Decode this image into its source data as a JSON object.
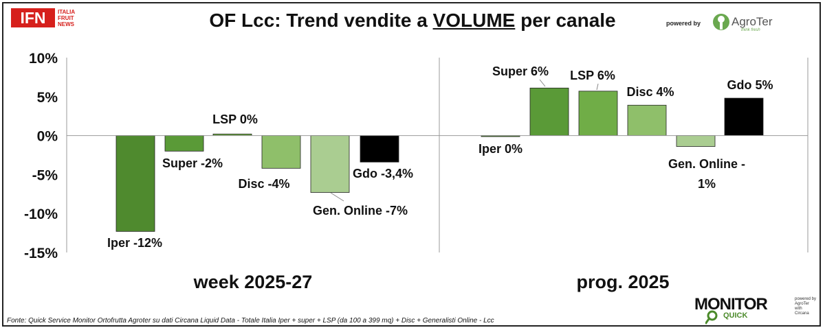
{
  "header": {
    "title_pre": "OF Lcc: Trend vendite a ",
    "title_em": "VOLUME",
    "title_post": " per canale",
    "powered_by": "powered by",
    "logo_ifn": "IFN",
    "logo_ifn_side": [
      "ITALIA",
      "FRUIT",
      "NEWS"
    ],
    "logo_agroter": "AgroTer",
    "logo_agroter_tag": "think fresh"
  },
  "footer": {
    "source": "Fonte: Quick Service Monitor Ortofrutta Agroter su dati Circana Liquid Data - Totale Italia Iper + super + LSP (da 100 a 399 mq) + Disc + Generalisti Online - Lcc",
    "monitor_word": "MONITOR",
    "monitor_quick": "QUICK",
    "monitor_side": [
      "powered by",
      "AgroTer",
      "with",
      "Circana"
    ]
  },
  "chart_data": {
    "type": "bar",
    "title": "OF Lcc: Trend vendite a VOLUME per canale",
    "ylim": [
      -15,
      10
    ],
    "yticks": [
      "10%",
      "5%",
      "0%",
      "-5%",
      "-10%",
      "-15%"
    ],
    "ytick_values": [
      10,
      5,
      0,
      -5,
      -10,
      -15
    ],
    "grid": false,
    "groups": [
      {
        "name": "week 2025-27",
        "bars": [
          {
            "channel": "Iper",
            "value": -12.3,
            "label": "Iper -12%",
            "color": "#4f8a2e"
          },
          {
            "channel": "Super",
            "value": -2.0,
            "label": "Super -2%",
            "color": "#5a9a37"
          },
          {
            "channel": "LSP",
            "value": 0.2,
            "label": "LSP 0%",
            "color": "#70ad47"
          },
          {
            "channel": "Disc",
            "value": -4.2,
            "label": "Disc -4%",
            "color": "#8fbf6a"
          },
          {
            "channel": "Gen. Online",
            "value": -7.3,
            "label": "Gen. Online -7%",
            "color": "#aacd91"
          },
          {
            "channel": "Gdo",
            "value": -3.4,
            "label": "Gdo -3,4%",
            "color": "#000000"
          }
        ]
      },
      {
        "name": "prog. 2025",
        "bars": [
          {
            "channel": "Iper",
            "value": -0.1,
            "label": "Iper 0%",
            "color": "#4f8a2e"
          },
          {
            "channel": "Super",
            "value": 6.1,
            "label": "Super 6%",
            "color": "#5a9a37"
          },
          {
            "channel": "LSP",
            "value": 5.7,
            "label": "LSP 6%",
            "color": "#70ad47"
          },
          {
            "channel": "Disc",
            "value": 3.9,
            "label": "Disc 4%",
            "color": "#8fbf6a"
          },
          {
            "channel": "Gen. Online",
            "value": -1.4,
            "label": "Gen. Online - 1%",
            "color": "#aacd91"
          },
          {
            "channel": "Gdo",
            "value": 4.8,
            "label": "Gdo 5%",
            "color": "#000000"
          }
        ]
      }
    ]
  }
}
